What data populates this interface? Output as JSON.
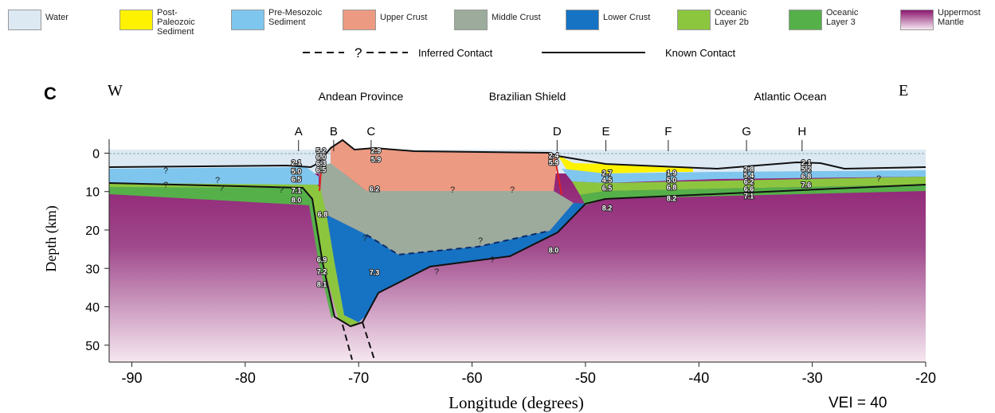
{
  "legend": {
    "items": [
      {
        "label": "Water",
        "color": "#dce9f3"
      },
      {
        "label": "Post-Paleozoic Sediment",
        "color": "#fff200"
      },
      {
        "label": "Pre-Mesozoic Sediment",
        "color": "#7fc6ee"
      },
      {
        "label": "Upper Crust",
        "color": "#ec9a82"
      },
      {
        "label": "Middle Crust",
        "color": "#9dab9c"
      },
      {
        "label": "Lower Crust",
        "color": "#1673c4"
      },
      {
        "label": "Oceanic Layer 2b",
        "color": "#8cc63f"
      },
      {
        "label": "Oceanic Layer 3",
        "color": "#55b04a"
      },
      {
        "label": "Uppermost Mantle",
        "color": "#8b176e"
      }
    ],
    "inferred_mark": "?",
    "inferred": "Inferred Contact",
    "known": "Known Contact"
  },
  "panel": {
    "letter": "C",
    "west": "W",
    "east": "E",
    "regions": [
      "Andean Province",
      "Brazilian Shield",
      "Atlantic Ocean"
    ],
    "stations": [
      {
        "name": "A",
        "lon": -75.3
      },
      {
        "name": "B",
        "lon": -72.2
      },
      {
        "name": "C",
        "lon": -68.9
      },
      {
        "name": "D",
        "lon": -52.5
      },
      {
        "name": "E",
        "lon": -48.2
      },
      {
        "name": "F",
        "lon": -42.7
      },
      {
        "name": "G",
        "lon": -35.8
      },
      {
        "name": "H",
        "lon": -30.9
      }
    ],
    "velocities": [
      "2.1",
      "5.0",
      "6.5",
      "7.1",
      "8.0",
      "5.2",
      "6.0",
      "6.3",
      "6.5",
      "2.9",
      "5.9",
      "6.2",
      "6.8",
      "6.9",
      "7.2",
      "8.1",
      "7.3",
      "2.4",
      "5.9",
      "2.7",
      "4.5",
      "6.5",
      "8.2",
      "1.9",
      "5.0",
      "6.8",
      "8.2",
      "2.8",
      "5.4",
      "6.2",
      "6.6",
      "7.1",
      "2.1",
      "5.2",
      "6.8",
      "7.6",
      "8.0"
    ],
    "question_marks": [
      "?",
      "?",
      "?",
      "?",
      "?",
      "?",
      "?",
      "?",
      "?",
      "?",
      "?",
      "?"
    ]
  },
  "axes": {
    "xlabel": "Longitude (degrees)",
    "ylabel": "Depth (km)",
    "note": "VEI = 40",
    "xlim": [
      -92,
      -20
    ],
    "ylim": [
      54.4,
      -3
    ],
    "xticks": [
      -90,
      -80,
      -70,
      -60,
      -50,
      -40,
      -30,
      -20
    ],
    "yticks": [
      0,
      10,
      20,
      30,
      40,
      50
    ]
  }
}
